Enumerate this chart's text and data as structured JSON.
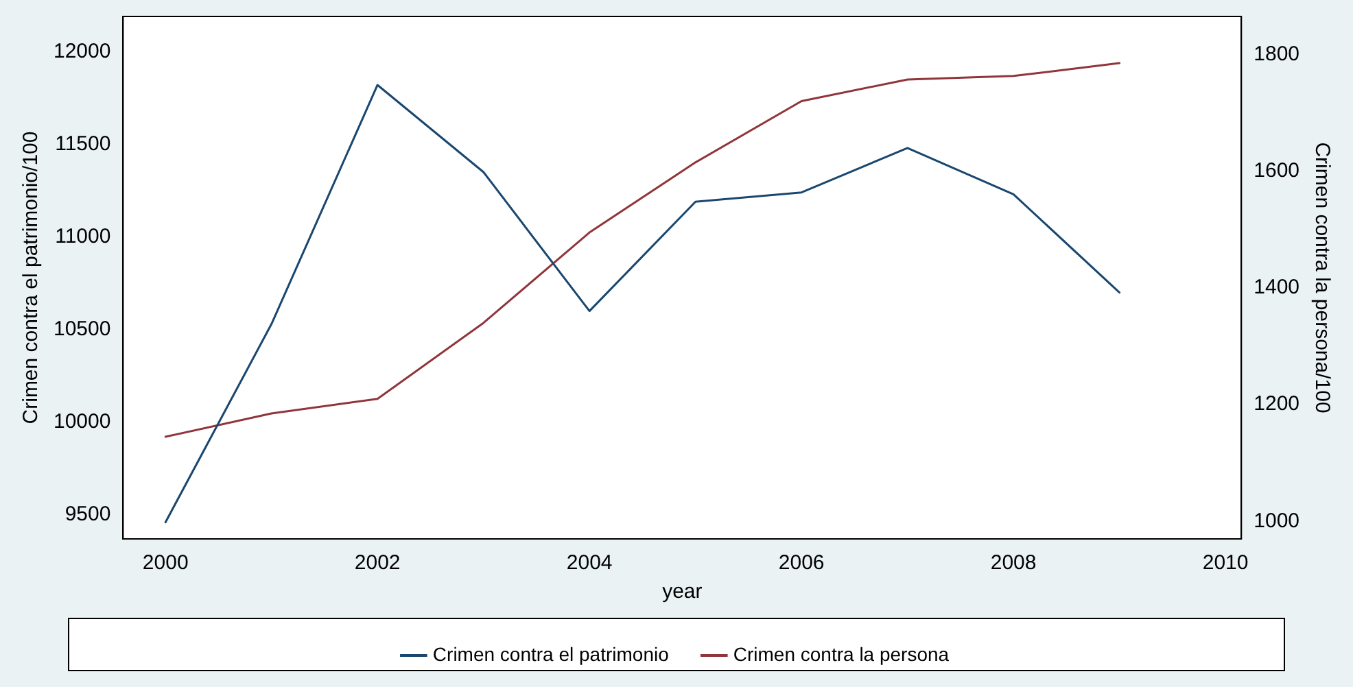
{
  "chart_data": {
    "type": "line",
    "xlabel": "year",
    "ylabel": "Crimen contra el patrimonio/100",
    "y2label": "Crimen contra la persona/100",
    "x": [
      2000,
      2001,
      2002,
      2003,
      2004,
      2005,
      2006,
      2007,
      2008,
      2009
    ],
    "series": [
      {
        "name": "Crimen contra el patrimonio",
        "color": "#1a476f",
        "values": [
          9460,
          10530,
          11820,
          11350,
          10600,
          11190,
          11240,
          11480,
          11230,
          10700
        ]
      },
      {
        "name": "Crimen contra la persona",
        "color": "#90353b",
        "axis": "y2",
        "values": [
          1145,
          1185,
          1210,
          1340,
          1495,
          1615,
          1720,
          1757,
          1763,
          1785
        ]
      }
    ],
    "xlim": [
      1999.6,
      2010.15
    ],
    "xticks": [
      2000,
      2002,
      2004,
      2006,
      2008,
      2010
    ],
    "ylim": [
      9370,
      12190
    ],
    "yticks": [
      9500,
      10000,
      10500,
      11000,
      11500,
      12000
    ],
    "y2lim": [
      970,
      1865
    ],
    "y2ticks": [
      1000,
      1200,
      1400,
      1600,
      1800
    ],
    "grid": false,
    "legend": "bottom",
    "marker": "none",
    "line_style": "solid"
  }
}
